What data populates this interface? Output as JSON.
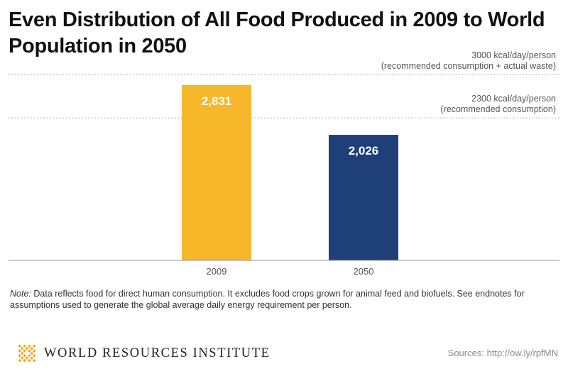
{
  "header": {
    "title": "Even Distribution of All Food Produced in 2009 to World Population in 2050"
  },
  "chart_data": {
    "type": "bar",
    "categories": [
      "2009",
      "2050"
    ],
    "values": [
      2831,
      2026
    ],
    "value_labels": [
      "2,831",
      "2,026"
    ],
    "colors": [
      "#F6B82A",
      "#1E3F77"
    ],
    "ylim": [
      0,
      3000
    ],
    "grid": false,
    "reference_lines": [
      {
        "value": 3000,
        "label_line1": "3000 kcal/day/person",
        "label_line2": "(recommended consumption + actual waste)"
      },
      {
        "value": 2300,
        "label_line1": "2300 kcal/day/person",
        "label_line2": "(recommended consumption)"
      }
    ]
  },
  "note": {
    "label": "Note:",
    "text": " Data reflects food for direct human consumption. It excludes food crops grown for animal feed and biofuels. See endnotes for assumptions used to generate the global average daily energy requirement per person."
  },
  "footer": {
    "organization": "WORLD RESOURCES INSTITUTE",
    "logo_icon": "wri-logo-icon",
    "logo_color": "#F0A41C",
    "source": "Sources: http://ow.ly/rpfMN"
  }
}
